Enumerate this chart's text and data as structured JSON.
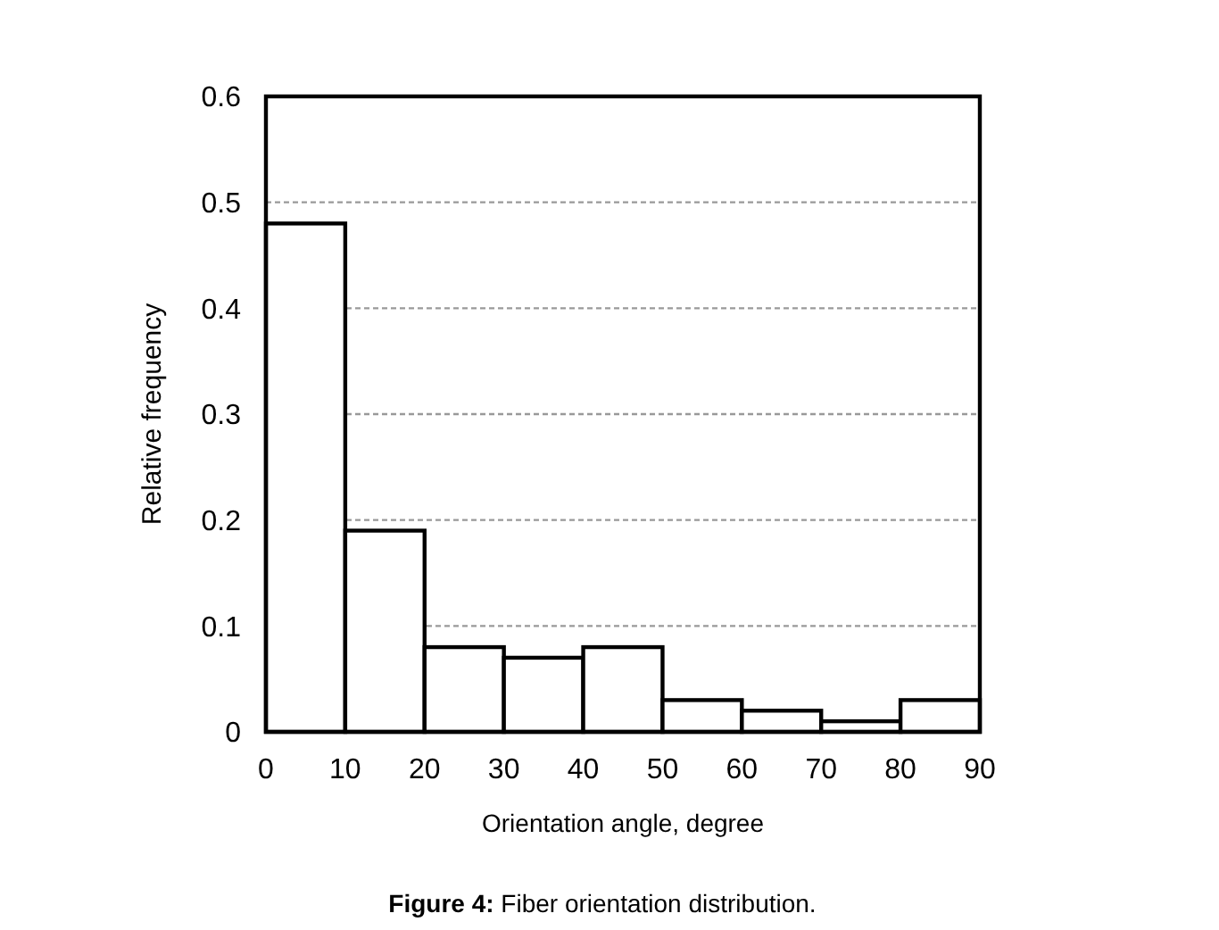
{
  "chart_data": {
    "type": "histogram",
    "xlabel": "Orientation angle, degree",
    "ylabel": "Relative frequency",
    "bins": [
      0,
      10,
      20,
      30,
      40,
      50,
      60,
      70,
      80,
      90
    ],
    "values": [
      0.48,
      0.19,
      0.08,
      0.07,
      0.08,
      0.03,
      0.02,
      0.01,
      0.03
    ],
    "color": "#ffffff",
    "xlim": [
      0,
      90
    ],
    "xticks": [
      0,
      10,
      20,
      30,
      40,
      50,
      60,
      70,
      80,
      90
    ],
    "ylim": [
      0,
      0.6
    ],
    "yticks": [
      0,
      0.1,
      0.2,
      0.3,
      0.4,
      0.5,
      0.6
    ],
    "grid": "y",
    "annotations": [
      "Figure 4: Fiber orientation distribution."
    ]
  }
}
